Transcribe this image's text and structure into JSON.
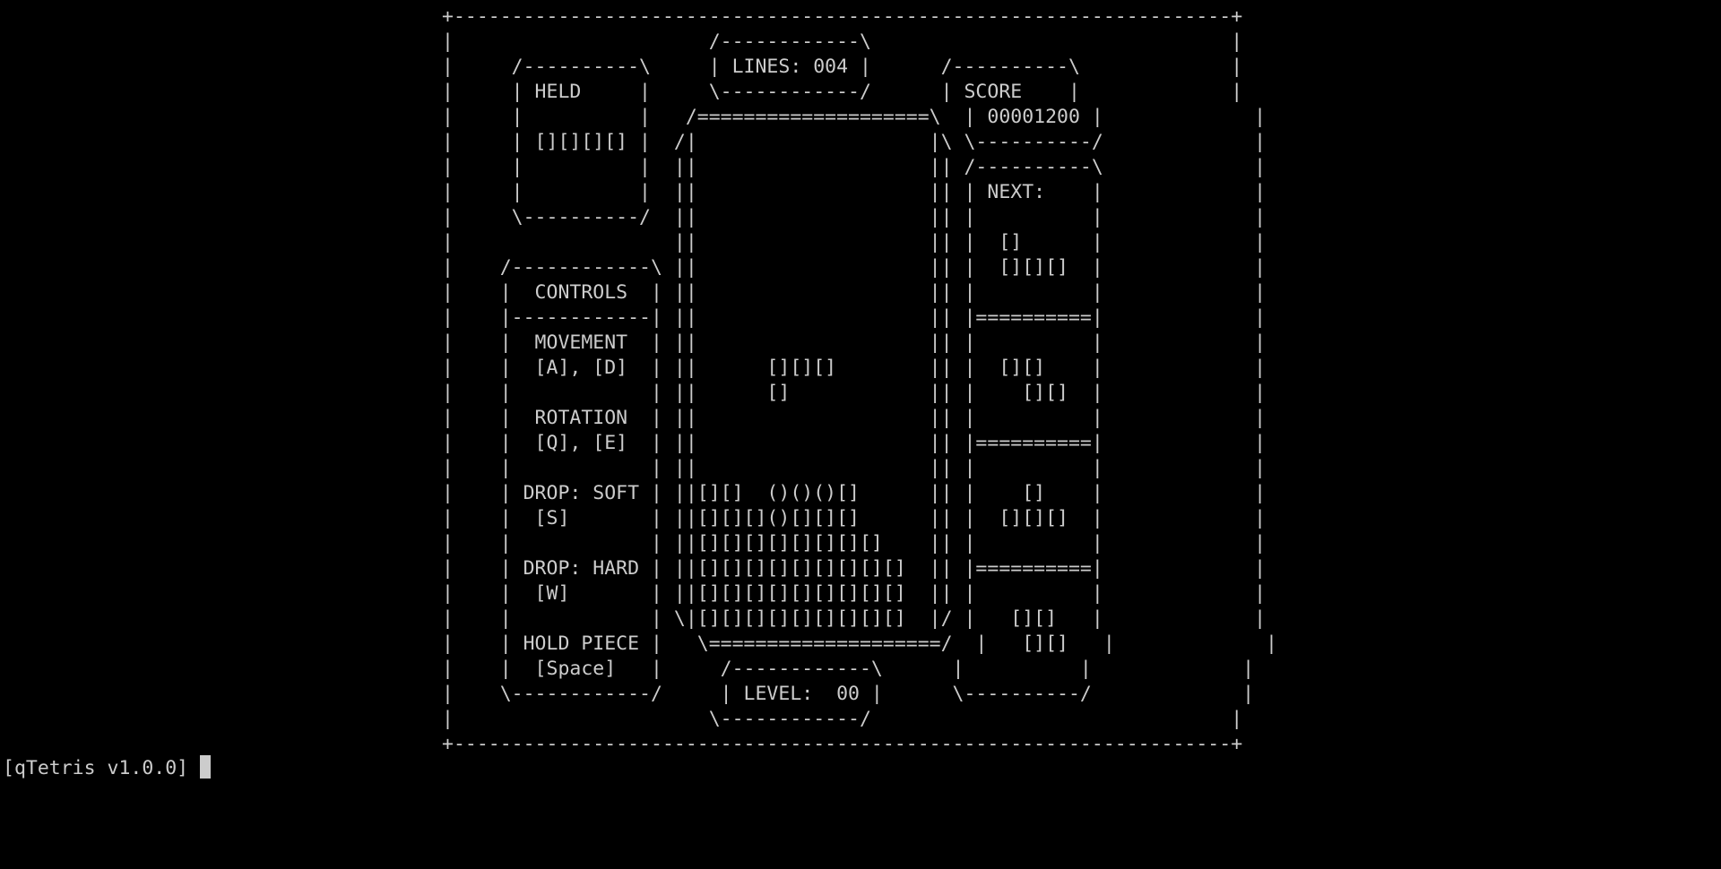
{
  "game": {
    "screen_lines": [
      "+-------------------------------------------------------------------+",
      "|                      /------------\\                               |",
      "|     /----------\\     | LINES: 004 |      /----------\\             |",
      "|     | HELD     |     \\------------/      | SCORE    |             |",
      "|     |          |   /====================\\  | 00001200 |             |",
      "|     | [][][][] |  /|                    |\\ \\----------/             |",
      "|     |          |  ||                    || /----------\\             |",
      "|     |          |  ||                    || | NEXT:    |             |",
      "|     \\----------/  ||                    || |          |             |",
      "|                   ||                    || |  []      |             |",
      "|    /------------\\ ||                    || |  [][][]  |             |",
      "|    |  CONTROLS  | ||                    || |          |             |",
      "|    |------------| ||                    || |==========|             |",
      "|    |  MOVEMENT  | ||                    || |          |             |",
      "|    |  [A], [D]  | ||      [][][]        || |  [][]    |             |",
      "|    |            | ||      []            || |    [][]  |             |",
      "|    |  ROTATION  | ||                    || |          |             |",
      "|    |  [Q], [E]  | ||                    || |==========|             |",
      "|    |            | ||                    || |          |             |",
      "|    | DROP: SOFT | ||[][]  ()()()[]      || |    []    |             |",
      "|    |  [S]       | ||[][][]()[][][]      || |  [][][]  |             |",
      "|    |            | ||[][][][][][][][]    || |          |             |",
      "|    | DROP: HARD | ||[][][][][][][][][]  || |==========|             |",
      "|    |  [W]       | ||[][][][][][][][][]  || |          |             |",
      "|    |            | \\|[][][][][][][][][]  |/ |   [][]   |             |",
      "|    | HOLD PIECE |   \\====================/  |   [][]   |             |",
      "|    |  [Space]   |     /------------\\      |          |             |",
      "|    \\------------/     | LEVEL:  00 |      \\----------/             |",
      "|                      \\------------/                               |",
      "+-------------------------------------------------------------------+"
    ],
    "lines": "004",
    "score": "00001200",
    "level": "00"
  },
  "prompt": {
    "text": "[qTetris v1.0.0] "
  }
}
